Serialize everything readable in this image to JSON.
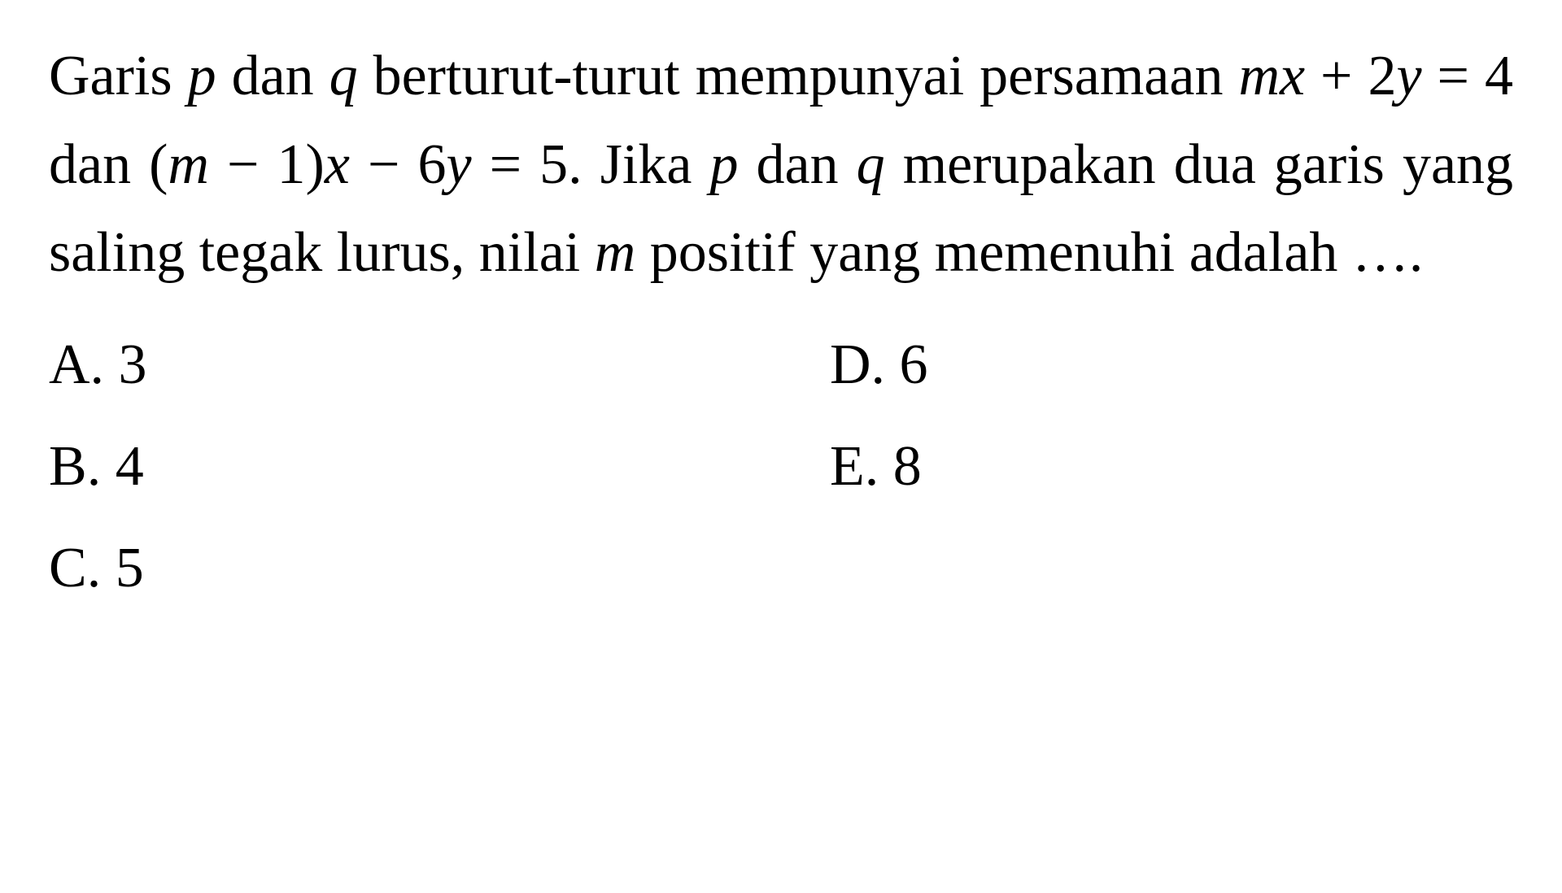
{
  "background_color": "#ffffff",
  "text_color": "#000000",
  "font_family": "Times New Roman",
  "question_fontsize": 70,
  "question": {
    "line1_part1": "Garis ",
    "line1_p": "p",
    "line1_part2": " dan ",
    "line1_q": "q",
    "line1_part3": " berturut-turut mempunyai",
    "line2_part1": "persamaan ",
    "line2_eq1a": "mx",
    "line2_eq1b": " + 2",
    "line2_eq1c": "y",
    "line2_eq1d": " = 4 dan (",
    "line2_eq1e": "m",
    "line2_eq1f": " − 1)",
    "line2_eq1g": "x",
    "line2_eq1h": " −",
    "line3_part1": "6",
    "line3_y": "y",
    "line3_part2": " = 5. Jika ",
    "line3_p": "p",
    "line3_part3": " dan ",
    "line3_q": "q",
    "line3_part4": " merupakan dua garis",
    "line4_part1": "yang saling tegak lurus, nilai ",
    "line4_m": "m",
    "line4_part2": " positif",
    "line5": "yang memenuhi adalah …."
  },
  "options": {
    "a": "A. 3",
    "b": "B. 4",
    "c": "C. 5",
    "d": "D. 6",
    "e": "E. 8"
  }
}
